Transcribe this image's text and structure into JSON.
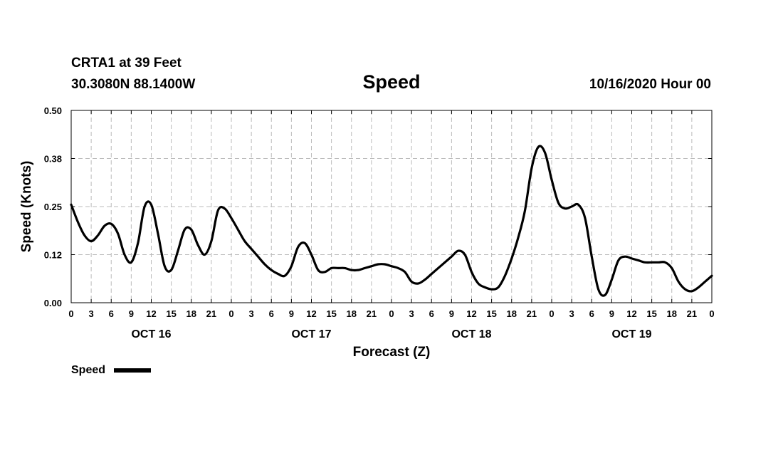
{
  "header": {
    "station": "CRTA1 at 39 Feet",
    "coords": "30.3080N 88.1400W",
    "title": "Speed",
    "datetime": "10/16/2020 Hour 00"
  },
  "legend": {
    "label": "Speed",
    "placement": "bottom-left"
  },
  "colors": {
    "line": "#000000",
    "grid": "#bbbbbb"
  },
  "chart_data": {
    "type": "line",
    "title": "Speed",
    "xlabel": "Forecast (Z)",
    "ylabel": "Speed (Knots)",
    "ylim": [
      0,
      0.5
    ],
    "xlim": [
      0,
      96
    ],
    "grid": true,
    "yticks": [
      {
        "value": 0.0,
        "label": "0.00"
      },
      {
        "value": 0.125,
        "label": "0.12"
      },
      {
        "value": 0.25,
        "label": "0.25"
      },
      {
        "value": 0.375,
        "label": "0.38"
      },
      {
        "value": 0.5,
        "label": "0.50"
      }
    ],
    "xtick_labels": [
      "0",
      "3",
      "6",
      "9",
      "12",
      "15",
      "18",
      "21",
      "0",
      "3",
      "6",
      "9",
      "12",
      "15",
      "18",
      "21",
      "0",
      "3",
      "6",
      "9",
      "12",
      "15",
      "18",
      "21",
      "0",
      "3",
      "6",
      "9",
      "12",
      "15",
      "18",
      "21",
      "0"
    ],
    "day_labels": [
      {
        "label": "OCT 16",
        "at_hour": 12
      },
      {
        "label": "OCT 17",
        "at_hour": 36
      },
      {
        "label": "OCT 18",
        "at_hour": 60
      },
      {
        "label": "OCT 19",
        "at_hour": 84
      }
    ],
    "series": [
      {
        "name": "Speed",
        "x": [
          0,
          1,
          2,
          3,
          4,
          5,
          6,
          7,
          8,
          9,
          10,
          11,
          12,
          13,
          14,
          15,
          16,
          17,
          18,
          19,
          20,
          21,
          22,
          23,
          24,
          25,
          26,
          27,
          28,
          29,
          30,
          31,
          32,
          33,
          34,
          35,
          36,
          37,
          38,
          39,
          40,
          41,
          42,
          43,
          44,
          45,
          46,
          47,
          48,
          49,
          50,
          51,
          52,
          53,
          54,
          55,
          56,
          57,
          58,
          59,
          60,
          61,
          62,
          63,
          64,
          65,
          66,
          67,
          68,
          69,
          70,
          71,
          72,
          73,
          74,
          75,
          76,
          77,
          78,
          79,
          80,
          81,
          82,
          83,
          84,
          85,
          86,
          87,
          88,
          89,
          90,
          91,
          92,
          93,
          94,
          95,
          96
        ],
        "values": [
          0.255,
          0.21,
          0.175,
          0.16,
          0.175,
          0.2,
          0.205,
          0.18,
          0.125,
          0.105,
          0.155,
          0.25,
          0.255,
          0.18,
          0.095,
          0.085,
          0.135,
          0.19,
          0.19,
          0.15,
          0.125,
          0.16,
          0.24,
          0.245,
          0.22,
          0.19,
          0.16,
          0.14,
          0.12,
          0.1,
          0.085,
          0.075,
          0.07,
          0.095,
          0.145,
          0.155,
          0.125,
          0.085,
          0.08,
          0.09,
          0.09,
          0.09,
          0.085,
          0.085,
          0.09,
          0.095,
          0.1,
          0.1,
          0.095,
          0.09,
          0.08,
          0.055,
          0.05,
          0.06,
          0.075,
          0.09,
          0.105,
          0.12,
          0.135,
          0.125,
          0.08,
          0.05,
          0.04,
          0.035,
          0.04,
          0.07,
          0.115,
          0.17,
          0.24,
          0.35,
          0.405,
          0.39,
          0.32,
          0.26,
          0.245,
          0.25,
          0.255,
          0.22,
          0.12,
          0.035,
          0.02,
          0.06,
          0.11,
          0.12,
          0.115,
          0.11,
          0.105,
          0.105,
          0.105,
          0.105,
          0.09,
          0.055,
          0.035,
          0.03,
          0.04,
          0.055,
          0.07
        ]
      }
    ]
  }
}
